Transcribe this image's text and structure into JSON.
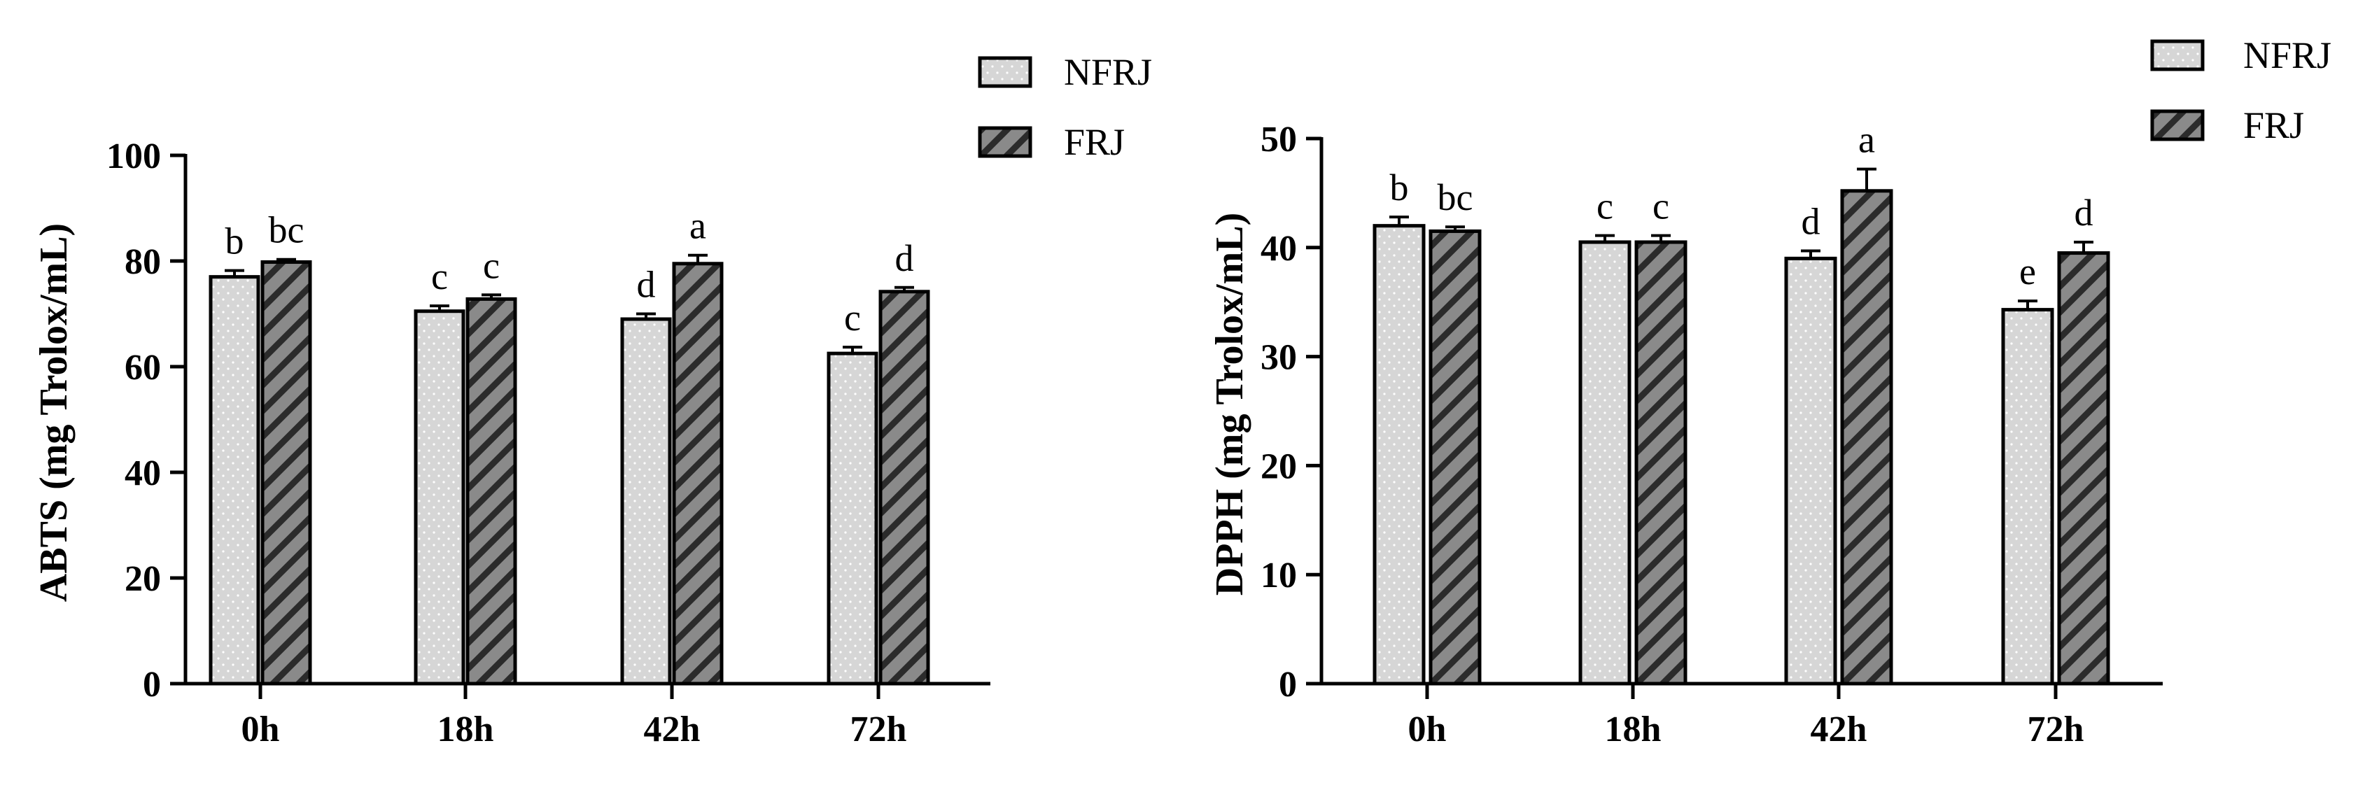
{
  "colors": {
    "nfrj_fill": "#d6d6d6",
    "frj_fill": "#8a8a8a",
    "outline": "#000000"
  },
  "chart_data": [
    {
      "type": "bar",
      "categories": [
        "0h",
        "18h",
        "42h",
        "72h"
      ],
      "ylabel": "ABTS (mg Trolox/mL)",
      "xlabel": "",
      "ylim": [
        0,
        100
      ],
      "yticks": [
        0,
        20,
        40,
        60,
        80,
        100
      ],
      "grid": false,
      "legend_position": "top-right",
      "series": [
        {
          "name": "NFRJ",
          "pattern": "dotted",
          "values": [
            77,
            70.5,
            69,
            62.5
          ],
          "errors": [
            1.2,
            1.0,
            1.0,
            1.2
          ],
          "letters": [
            "b",
            "c",
            "d",
            "c"
          ]
        },
        {
          "name": "FRJ",
          "pattern": "hatched",
          "values": [
            79.8,
            72.8,
            79.5,
            74.2
          ],
          "errors": [
            0.5,
            0.8,
            1.6,
            0.8
          ],
          "letters": [
            "bc",
            "c",
            "a",
            "d"
          ]
        }
      ]
    },
    {
      "type": "bar",
      "categories": [
        "0h",
        "18h",
        "42h",
        "72h"
      ],
      "ylabel": "DPPH (mg Trolox/mL)",
      "xlabel": "",
      "ylim": [
        0,
        50
      ],
      "yticks": [
        0,
        10,
        20,
        30,
        40,
        50
      ],
      "grid": false,
      "legend_position": "top-right",
      "series": [
        {
          "name": "NFRJ",
          "pattern": "dotted",
          "values": [
            42,
            40.5,
            39,
            34.3
          ],
          "errors": [
            0.8,
            0.6,
            0.7,
            0.8
          ],
          "letters": [
            "b",
            "c",
            "d",
            "e"
          ]
        },
        {
          "name": "FRJ",
          "pattern": "hatched",
          "values": [
            41.5,
            40.5,
            45.2,
            39.5
          ],
          "errors": [
            0.4,
            0.6,
            2.0,
            1.0
          ],
          "letters": [
            "bc",
            "c",
            "a",
            "d"
          ]
        }
      ]
    }
  ]
}
